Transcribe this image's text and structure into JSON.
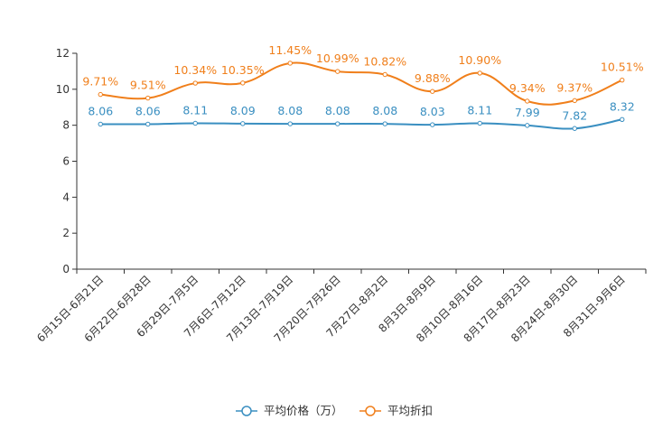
{
  "chart_data": {
    "type": "line",
    "categories": [
      "6月15日-6月21日",
      "6月22日-6月28日",
      "6月29日-7月5日",
      "7月6日-7月12日",
      "7月13日-7月19日",
      "7月20日-7月26日",
      "7月27日-8月2日",
      "8月3日-8月9日",
      "8月10日-8月16日",
      "8月17日-8月23日",
      "8月24日-8月30日",
      "8月31日-9月6日"
    ],
    "ylim": [
      0,
      12
    ],
    "yticks": [
      "0",
      "2",
      "4",
      "6",
      "8",
      "10",
      "12"
    ],
    "series": [
      {
        "name": "平均价格（万）",
        "color": "#3a8fc1",
        "values": [
          8.06,
          8.06,
          8.11,
          8.09,
          8.08,
          8.08,
          8.08,
          8.03,
          8.11,
          7.99,
          7.82,
          8.32
        ],
        "labels": [
          "8.06",
          "8.06",
          "8.11",
          "8.09",
          "8.08",
          "8.08",
          "8.08",
          "8.03",
          "8.11",
          "7.99",
          "7.82",
          "8.32"
        ]
      },
      {
        "name": "平均折扣",
        "color": "#f07f1b",
        "values": [
          9.71,
          9.51,
          10.34,
          10.35,
          11.45,
          10.99,
          10.82,
          9.88,
          10.9,
          9.34,
          9.37,
          10.51
        ],
        "labels": [
          "9.71%",
          "9.51%",
          "10.34%",
          "10.35%",
          "11.45%",
          "10.99%",
          "10.82%",
          "9.88%",
          "10.90%",
          "9.34%",
          "9.37%",
          "10.51%"
        ]
      }
    ],
    "legend_position": "bottom-center"
  }
}
